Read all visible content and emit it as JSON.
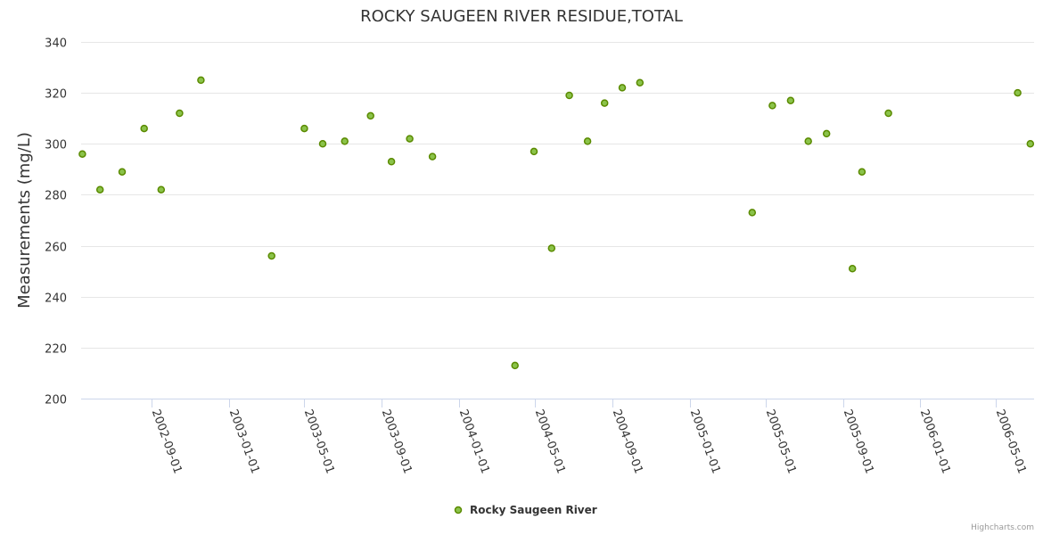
{
  "colors": {
    "marker_fill": "#8bc34a",
    "marker_stroke": "#5a8a00",
    "grid": "#e6e6e6",
    "axis": "#ccd6eb",
    "text": "#333333",
    "credit": "#999999"
  },
  "credits": "Highcharts.com",
  "chart_data": {
    "type": "scatter",
    "title": "ROCKY SAUGEEN RIVER RESIDUE,TOTAL",
    "xlabel": "",
    "ylabel": "Measurements (mg/L)",
    "ylim": [
      200,
      340
    ],
    "yticks": [
      200,
      220,
      240,
      260,
      280,
      300,
      320,
      340
    ],
    "xlim": [
      "2002-05-12",
      "2006-07-01"
    ],
    "xticks": [
      "2002-09-01",
      "2003-01-01",
      "2003-05-01",
      "2003-09-01",
      "2004-01-01",
      "2004-05-01",
      "2004-09-01",
      "2005-01-01",
      "2005-05-01",
      "2005-09-01",
      "2006-01-01",
      "2006-05-01"
    ],
    "legend": "bottom-center",
    "grid": true,
    "series": [
      {
        "name": "Rocky Saugeen River",
        "points": [
          {
            "x": "2002-05-14",
            "y": 296
          },
          {
            "x": "2002-06-11",
            "y": 282
          },
          {
            "x": "2002-07-16",
            "y": 289
          },
          {
            "x": "2002-08-20",
            "y": 306
          },
          {
            "x": "2002-09-16",
            "y": 282
          },
          {
            "x": "2002-10-15",
            "y": 312
          },
          {
            "x": "2002-11-18",
            "y": 325
          },
          {
            "x": "2003-03-10",
            "y": 256
          },
          {
            "x": "2003-05-01",
            "y": 306
          },
          {
            "x": "2003-05-30",
            "y": 300
          },
          {
            "x": "2003-07-04",
            "y": 301
          },
          {
            "x": "2003-08-14",
            "y": 311
          },
          {
            "x": "2003-09-16",
            "y": 293
          },
          {
            "x": "2003-10-15",
            "y": 302
          },
          {
            "x": "2003-11-20",
            "y": 295
          },
          {
            "x": "2004-03-30",
            "y": 213
          },
          {
            "x": "2004-04-29",
            "y": 297
          },
          {
            "x": "2004-05-27",
            "y": 259
          },
          {
            "x": "2004-06-24",
            "y": 319
          },
          {
            "x": "2004-07-23",
            "y": 301
          },
          {
            "x": "2004-08-19",
            "y": 316
          },
          {
            "x": "2004-09-16",
            "y": 322
          },
          {
            "x": "2004-10-14",
            "y": 324
          },
          {
            "x": "2005-04-10",
            "y": 273
          },
          {
            "x": "2005-05-12",
            "y": 315
          },
          {
            "x": "2005-06-10",
            "y": 317
          },
          {
            "x": "2005-07-08",
            "y": 301
          },
          {
            "x": "2005-08-06",
            "y": 304
          },
          {
            "x": "2005-09-16",
            "y": 251
          },
          {
            "x": "2005-10-01",
            "y": 289
          },
          {
            "x": "2005-11-12",
            "y": 312
          },
          {
            "x": "2006-06-05",
            "y": 320
          },
          {
            "x": "2006-06-25",
            "y": 300
          }
        ]
      }
    ]
  }
}
